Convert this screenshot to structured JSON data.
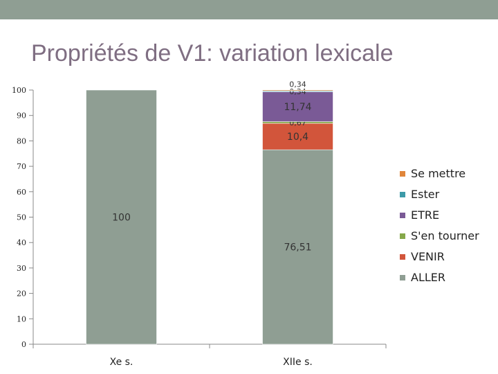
{
  "title": "Propriétés de V1: variation lexicale",
  "colors": {
    "band": "#8f9e93",
    "title": "#7f6e82"
  },
  "chart_data": {
    "type": "bar",
    "stacked": true,
    "categories": [
      "Xe s.",
      "XIIe s."
    ],
    "ylim": [
      0,
      100
    ],
    "yticks": [
      0,
      10,
      20,
      30,
      40,
      50,
      60,
      70,
      80,
      90,
      100
    ],
    "series": [
      {
        "name": "ALLER",
        "color": "#8f9e93",
        "values": [
          100,
          76.51
        ],
        "labels": [
          "100",
          "76,51"
        ]
      },
      {
        "name": "VENIR",
        "color": "#d2553b",
        "values": [
          0,
          10.4
        ],
        "labels": [
          "",
          "10,4"
        ]
      },
      {
        "name": "S'en tourner",
        "color": "#86a84a",
        "values": [
          0,
          0.67
        ],
        "labels": [
          "",
          "0,67"
        ]
      },
      {
        "name": "ETRE",
        "color": "#7a5a96",
        "values": [
          0,
          11.74
        ],
        "labels": [
          "",
          "11,74"
        ]
      },
      {
        "name": "Ester",
        "color": "#3d9aa8",
        "values": [
          0,
          0.34
        ],
        "labels": [
          "",
          "0,34"
        ]
      },
      {
        "name": "Se mettre",
        "color": "#e0863a",
        "values": [
          0,
          0.34
        ],
        "labels": [
          "",
          "0,34"
        ]
      }
    ],
    "legend_position": "right"
  }
}
